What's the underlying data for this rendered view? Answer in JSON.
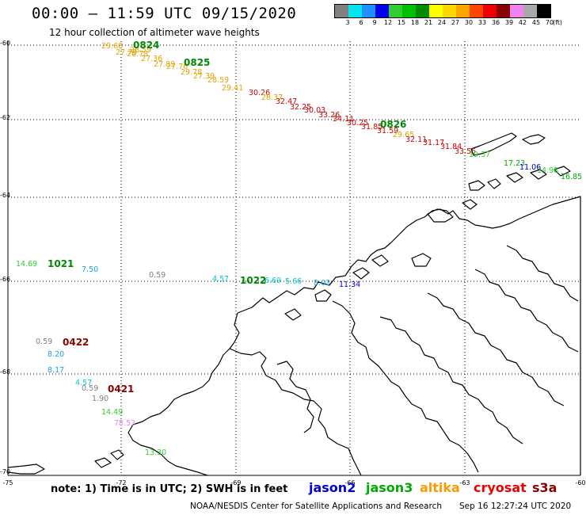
{
  "header": {
    "title": "00:00 – 11:59 UTC 09/15/2020",
    "subtitle": "12 hour collection of altimeter wave heights"
  },
  "legend": {
    "unit": "(ft)",
    "bins": [
      {
        "label": "3",
        "color": "#808080"
      },
      {
        "label": "6",
        "color": "#00e5ee"
      },
      {
        "label": "9",
        "color": "#1e90ff"
      },
      {
        "label": "12",
        "color": "#0000ee"
      },
      {
        "label": "15",
        "color": "#32cd32"
      },
      {
        "label": "18",
        "color": "#00c000"
      },
      {
        "label": "21",
        "color": "#008b00"
      },
      {
        "label": "24",
        "color": "#ffff00"
      },
      {
        "label": "27",
        "color": "#ffd700"
      },
      {
        "label": "30",
        "color": "#ffa500"
      },
      {
        "label": "33",
        "color": "#ff4500"
      },
      {
        "label": "36",
        "color": "#ee0000"
      },
      {
        "label": "39",
        "color": "#8b0000"
      },
      {
        "label": "42",
        "color": "#ee82ee"
      },
      {
        "label": "45",
        "color": "#a9a9a9"
      },
      {
        "label": "70",
        "color": "#000000"
      }
    ]
  },
  "axes": {
    "lat_labels": [
      "-60",
      "-62",
      "-64",
      "-66",
      "-68",
      "-70"
    ],
    "lon_labels": [
      "-75",
      "-72",
      "-69",
      "-66",
      "-63",
      "-60"
    ]
  },
  "observations": [
    {
      "value": "29.68",
      "color": "#e6a200"
    },
    {
      "value": "27.79",
      "color": "#e6a200"
    },
    {
      "value": "26.78",
      "color": "#e6a200"
    },
    {
      "value": "28.59",
      "color": "#e6a200"
    },
    {
      "value": "27.36",
      "color": "#e6a200"
    },
    {
      "value": "27.89",
      "color": "#e6a200"
    },
    {
      "value": "27.76",
      "color": "#e6a200"
    },
    {
      "value": "29.78",
      "color": "#e6a200"
    },
    {
      "value": "27.39",
      "color": "#e6a200"
    },
    {
      "value": "28.59",
      "color": "#e6a200"
    },
    {
      "value": "29.41",
      "color": "#e6a200"
    },
    {
      "value": "30.26",
      "color": "#cc0000"
    },
    {
      "value": "28.37",
      "color": "#e6a200"
    },
    {
      "value": "32.47",
      "color": "#cc0000"
    },
    {
      "value": "32.25",
      "color": "#cc0000"
    },
    {
      "value": "30.03",
      "color": "#cc0000"
    },
    {
      "value": "33.26",
      "color": "#cc0000"
    },
    {
      "value": "34.11",
      "color": "#cc0000"
    },
    {
      "value": "30.25",
      "color": "#cc0000"
    },
    {
      "value": "31.85",
      "color": "#cc0000"
    },
    {
      "value": "31.59",
      "color": "#cc0000"
    },
    {
      "value": "29.65",
      "color": "#e6a200"
    },
    {
      "value": "32.11",
      "color": "#cc0000"
    },
    {
      "value": "31.17",
      "color": "#cc0000"
    },
    {
      "value": "31.84",
      "color": "#cc0000"
    },
    {
      "value": "33.55",
      "color": "#cc0000"
    },
    {
      "value": "19.37",
      "color": "#32cd32"
    },
    {
      "value": "17.23",
      "color": "#00aa00"
    },
    {
      "value": "11.06",
      "color": "#0000cc"
    },
    {
      "value": "14.98",
      "color": "#32cd32"
    },
    {
      "value": "16.85",
      "color": "#00aa00"
    },
    {
      "value": "14.69",
      "color": "#32cd32"
    },
    {
      "value": "7.50",
      "color": "#1ea0e0"
    },
    {
      "value": "0.59",
      "color": "#808080"
    },
    {
      "value": "4.57",
      "color": "#00c8d0"
    },
    {
      "value": "6.69",
      "color": "#00c8d0"
    },
    {
      "value": "5.66",
      "color": "#00c8d0"
    },
    {
      "value": "8.03",
      "color": "#1ea0e0"
    },
    {
      "value": "11.34",
      "color": "#0000cc"
    },
    {
      "value": "0.59",
      "color": "#808080"
    },
    {
      "value": "8.20",
      "color": "#1ea0e0"
    },
    {
      "value": "8.17",
      "color": "#1ea0e0"
    },
    {
      "value": "4.57",
      "color": "#00c8d0"
    },
    {
      "value": "0.59",
      "color": "#808080"
    },
    {
      "value": "1.90",
      "color": "#808080"
    },
    {
      "value": "14.49",
      "color": "#32cd32"
    },
    {
      "value": "78.53",
      "color": "#ee82ee"
    },
    {
      "value": "13.30",
      "color": "#32cd32"
    }
  ],
  "orbit_labels": [
    {
      "text": "0824",
      "color": "#008800"
    },
    {
      "text": "0825",
      "color": "#008800"
    },
    {
      "text": "0826",
      "color": "#008800"
    },
    {
      "text": "1021",
      "color": "#008800"
    },
    {
      "text": "1022",
      "color": "#008800"
    },
    {
      "text": "0422",
      "color": "#8b0000"
    },
    {
      "text": "0421",
      "color": "#8b0000"
    }
  ],
  "footer": {
    "note": "note: 1) Time is in UTC; 2) SWH is in feet",
    "satellites": [
      {
        "name": "jason2",
        "color": "#0000dd"
      },
      {
        "name": "jason3",
        "color": "#00aa00"
      },
      {
        "name": "altika",
        "color": "#ff9900"
      },
      {
        "name": "cryosat",
        "color": "#ee0000"
      },
      {
        "name": "s3a",
        "color": "#8b0000"
      }
    ],
    "credit": "NOAA/NESDIS Center for Satellite Applications and Research",
    "timestamp": "Sep 16 12:27:24 UTC 2020"
  }
}
